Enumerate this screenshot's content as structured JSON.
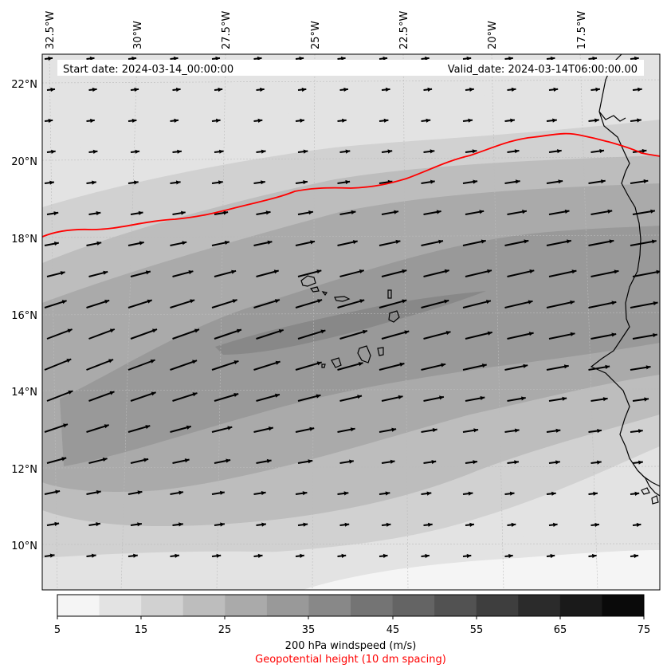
{
  "header": {
    "start_date": "Start date: 2024-03-14_00:00:00",
    "valid_date": "Valid_date: 2024-03-14T06:00:00.00"
  },
  "lon_labels": [
    "32.5°W",
    "30°W",
    "27.5°W",
    "25°W",
    "22.5°W",
    "20°W",
    "17.5°W"
  ],
  "lat_labels": [
    "22°N",
    "20°N",
    "18°N",
    "16°N",
    "14°N",
    "12°N",
    "10°N"
  ],
  "colorbar": {
    "ticks": [
      "5",
      "15",
      "25",
      "35",
      "45",
      "55",
      "65",
      "75"
    ],
    "label": "200 hPa windspeed (m/s)",
    "sublabel": "Geopotential height (10 dm spacing)",
    "levels": [
      5,
      10,
      15,
      20,
      25,
      30,
      35,
      40,
      45,
      50,
      55,
      60,
      65,
      70,
      75
    ],
    "colors": [
      "#f5f5f5",
      "#e3e3e3",
      "#d1d1d1",
      "#bdbdbd",
      "#aaaaaa",
      "#999999",
      "#888888",
      "#747474",
      "#646464",
      "#525252",
      "#3e3e3e",
      "#2b2b2b",
      "#1a1a1a",
      "#0a0a0a"
    ]
  },
  "colors": {
    "contour": "#ff0000",
    "coastline": "#000000",
    "vectors": "#000000",
    "ocean_background": "#dcdcdc"
  }
}
